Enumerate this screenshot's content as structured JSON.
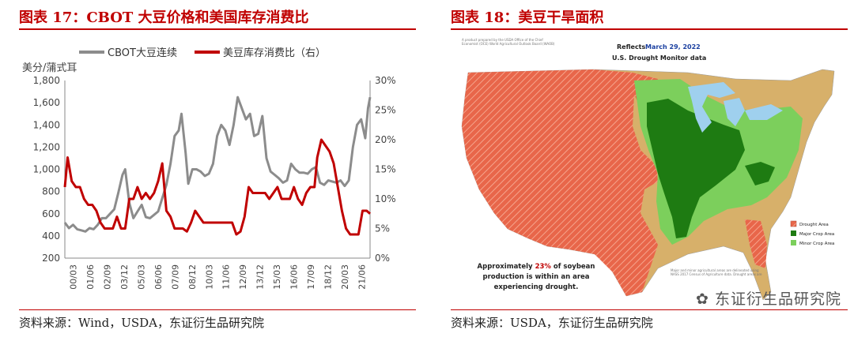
{
  "left": {
    "title": "图表 17：CBOT 大豆价格和美国库存消费比",
    "source": "资料来源：Wind，USDA，东证衍生品研究院"
  },
  "right": {
    "title": "图表 18：美豆干旱面积",
    "source": "资料来源：USDA，东证衍生品研究院",
    "map": {
      "header_prefix": "Reflects",
      "header_date": "March 29, 2022",
      "header_sub": "U.S. Drought Monitor data",
      "credit": "A product prepared by the USDA Office of the Chief Economist (OCE) World Agricultural Outlook Board (WAOB)",
      "legend": [
        "Drought Area",
        "Major Crop Area",
        "Minor Crop Area"
      ],
      "callout_1": "Approximately",
      "callout_pct": "23%",
      "callout_2": "of soybean",
      "callout_3": "production is within an area",
      "callout_4": "experiencing drought.",
      "footnote": "Major and minor agricultural areas are delineated using NASS 2017 Census of Agriculture data. Drought areas are",
      "watermark": "东证衍生品研究院",
      "colors": {
        "drought": "#e8664a",
        "major": "#1e7b12",
        "minor": "#7ccf5c",
        "land": "#d7b06a",
        "water": "#9fd0ee"
      }
    }
  },
  "chart_data": {
    "type": "line",
    "ylabel": "美分/蒲式耳",
    "ylim": [
      200,
      1800
    ],
    "yticks": [
      "200",
      "400",
      "600",
      "800",
      "1,000",
      "1,200",
      "1,400",
      "1,600",
      "1,800"
    ],
    "y2lim": [
      0,
      30
    ],
    "y2ticks": [
      "0%",
      "5%",
      "10%",
      "15%",
      "20%",
      "25%",
      "30%"
    ],
    "xticks": [
      "00/03",
      "01/06",
      "02/09",
      "03/12",
      "05/03",
      "06/06",
      "07/09",
      "08/12",
      "10/03",
      "11/06",
      "12/09",
      "13/12",
      "15/03",
      "16/06",
      "17/09",
      "18/12",
      "20/03",
      "21/06"
    ],
    "xlim": [
      2000.0,
      2022.25
    ],
    "legend": [
      "CBOT大豆连续",
      "美豆库存消费比（右）"
    ],
    "colors": [
      "#8c8c8c",
      "#c00000"
    ],
    "series": [
      {
        "name": "CBOT大豆连续",
        "axis": "left",
        "x": [
          2000.0,
          2000.3,
          2000.6,
          2000.9,
          2001.2,
          2001.5,
          2001.8,
          2002.1,
          2002.4,
          2002.7,
          2003.0,
          2003.3,
          2003.6,
          2003.9,
          2004.2,
          2004.4,
          2004.7,
          2005.0,
          2005.3,
          2005.6,
          2005.9,
          2006.2,
          2006.5,
          2006.8,
          2007.1,
          2007.4,
          2007.7,
          2008.0,
          2008.3,
          2008.5,
          2008.8,
          2009.0,
          2009.3,
          2009.6,
          2009.9,
          2010.2,
          2010.5,
          2010.8,
          2011.1,
          2011.4,
          2011.7,
          2012.0,
          2012.3,
          2012.6,
          2012.9,
          2013.2,
          2013.5,
          2013.8,
          2014.1,
          2014.4,
          2014.7,
          2015.0,
          2015.3,
          2015.6,
          2015.9,
          2016.2,
          2016.5,
          2016.8,
          2017.1,
          2017.4,
          2017.7,
          2018.0,
          2018.3,
          2018.6,
          2018.9,
          2019.2,
          2019.5,
          2019.8,
          2020.1,
          2020.4,
          2020.7,
          2021.0,
          2021.3,
          2021.6,
          2021.9,
          2022.1,
          2022.25
        ],
        "y": [
          520,
          470,
          500,
          460,
          450,
          440,
          470,
          460,
          500,
          560,
          560,
          600,
          640,
          790,
          950,
          1000,
          700,
          560,
          620,
          680,
          570,
          560,
          590,
          620,
          740,
          860,
          1050,
          1300,
          1350,
          1500,
          1150,
          870,
          1000,
          1000,
          980,
          940,
          960,
          1050,
          1300,
          1400,
          1350,
          1220,
          1400,
          1650,
          1550,
          1450,
          1500,
          1300,
          1320,
          1480,
          1100,
          980,
          950,
          920,
          880,
          900,
          1050,
          1000,
          970,
          970,
          960,
          1000,
          1020,
          880,
          860,
          900,
          890,
          880,
          900,
          850,
          900,
          1200,
          1400,
          1450,
          1280,
          1550,
          1650
        ]
      },
      {
        "name": "美豆库存消费比（右）",
        "axis": "right",
        "x": [
          2000.0,
          2000.2,
          2000.5,
          2000.8,
          2001.1,
          2001.4,
          2001.7,
          2002.0,
          2002.3,
          2002.6,
          2002.9,
          2003.2,
          2003.5,
          2003.8,
          2004.1,
          2004.4,
          2004.7,
          2005.0,
          2005.3,
          2005.6,
          2005.9,
          2006.2,
          2006.5,
          2006.8,
          2007.1,
          2007.4,
          2007.7,
          2008.0,
          2008.3,
          2008.6,
          2008.9,
          2009.2,
          2009.5,
          2009.8,
          2010.1,
          2010.4,
          2010.7,
          2011.0,
          2011.3,
          2011.6,
          2011.9,
          2012.2,
          2012.5,
          2012.8,
          2013.1,
          2013.4,
          2013.7,
          2014.0,
          2014.3,
          2014.6,
          2014.9,
          2015.2,
          2015.5,
          2015.8,
          2016.1,
          2016.4,
          2016.7,
          2017.0,
          2017.3,
          2017.6,
          2017.9,
          2018.2,
          2018.4,
          2018.7,
          2019.0,
          2019.3,
          2019.6,
          2019.9,
          2020.2,
          2020.5,
          2020.8,
          2021.1,
          2021.4,
          2021.7,
          2022.0,
          2022.25
        ],
        "y": [
          12,
          17,
          13,
          12,
          12,
          10,
          9,
          9,
          8,
          6,
          5,
          5,
          5,
          7,
          5,
          5,
          10,
          10,
          12,
          10,
          11,
          10,
          11,
          13,
          16,
          8,
          7,
          5,
          5,
          5,
          4.5,
          6,
          8,
          7,
          6,
          6,
          6,
          6,
          6,
          6,
          6,
          6,
          4,
          4.5,
          7,
          12,
          11,
          11,
          11,
          11,
          10,
          11,
          12,
          10,
          10,
          10,
          12,
          10,
          9,
          11,
          12,
          12,
          17,
          20,
          19,
          18,
          16,
          12,
          8,
          5,
          4,
          4,
          4,
          8,
          8,
          7.5
        ]
      }
    ]
  }
}
